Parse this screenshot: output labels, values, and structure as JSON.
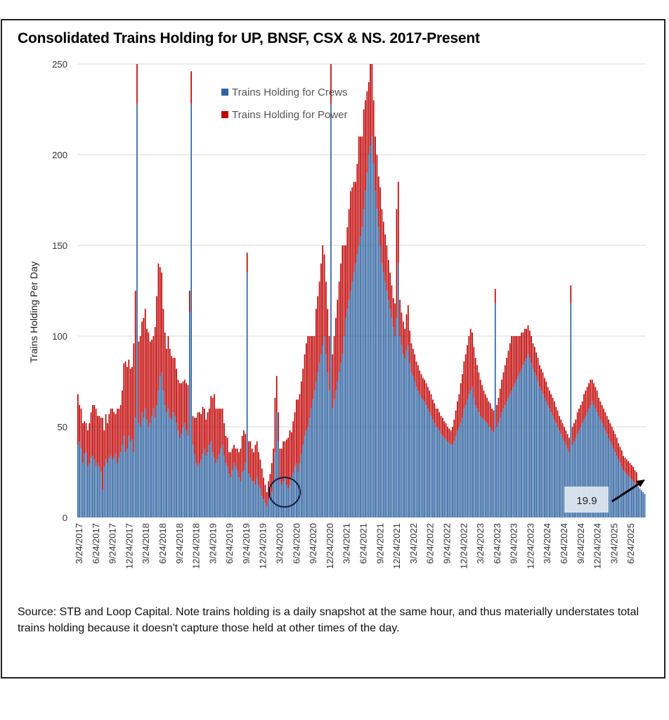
{
  "title": "Consolidated Trains Holding for UP, BNSF, CSX & NS. 2017-Present",
  "footer": "Source: STB and Loop Capital. Note trains holding is a daily snapshot at the same hour, and thus materially understates total trains holding because it doesn't capture those held at other times of the day.",
  "colors": {
    "crews": "#2E62A0",
    "power": "#C00000",
    "grid": "#D9D9D9"
  },
  "chart_data": {
    "type": "bar",
    "stacked": true,
    "title": "Consolidated Trains Holding for UP, BNSF, CSX & NS. 2017-Present",
    "xlabel": "",
    "ylabel": "Trains Holding Per Day",
    "ylim": [
      0,
      250
    ],
    "yticks": [
      0,
      50,
      100,
      150,
      200,
      250
    ],
    "grid": true,
    "legend_position": "top-center",
    "legend": [
      "Trains Holding for Crews",
      "Trains Holding for Power"
    ],
    "x_start": "3/24/2017",
    "x_frequency": "weekly",
    "xtick_every_n_weeks": 13,
    "xtick_labels": [
      "3/24/2017",
      "6/24/2017",
      "9/24/2017",
      "12/24/2017",
      "3/24/2018",
      "6/24/2018",
      "9/24/2018",
      "12/24/2018",
      "3/24/2019",
      "6/24/2019",
      "9/24/2019",
      "12/24/2019",
      "3/24/2020",
      "6/24/2020",
      "9/24/2020",
      "12/24/2020",
      "3/24/2021",
      "6/24/2021",
      "9/24/2021",
      "12/24/2021",
      "3/24/2022",
      "6/24/2022",
      "9/24/2022",
      "12/24/2022",
      "3/24/2023",
      "6/24/2023",
      "9/24/2023",
      "12/24/2023",
      "3/24/2024",
      "6/24/2024",
      "9/24/2024",
      "12/24/2024",
      "3/24/2025",
      "6/24/2025"
    ],
    "series": [
      {
        "name": "Trains Holding for Crews",
        "values": [
          40,
          42,
          38,
          30,
          35,
          36,
          28,
          30,
          33,
          34,
          32,
          28,
          30,
          28,
          25,
          15,
          28,
          32,
          30,
          33,
          34,
          32,
          33,
          35,
          30,
          33,
          36,
          40,
          45,
          36,
          38,
          45,
          42,
          43,
          36,
          55,
          228,
          52,
          50,
          58,
          55,
          60,
          54,
          50,
          52,
          56,
          60,
          55,
          62,
          70,
          78,
          80,
          70,
          62,
          58,
          60,
          55,
          54,
          58,
          56,
          52,
          48,
          44,
          46,
          50,
          52,
          48,
          45,
          113,
          228,
          40,
          35,
          30,
          28,
          30,
          32,
          35,
          38,
          34,
          36,
          40,
          42,
          36,
          33,
          30,
          32,
          35,
          38,
          40,
          34,
          30,
          28,
          24,
          22,
          26,
          30,
          28,
          26,
          22,
          20,
          25,
          26,
          30,
          135,
          24,
          22,
          20,
          20,
          18,
          22,
          18,
          16,
          12,
          10,
          8,
          6,
          10,
          12,
          14,
          20,
          36,
          58,
          42,
          20,
          18,
          20,
          22,
          18,
          16,
          18,
          22,
          25,
          28,
          30,
          25,
          30,
          35,
          40,
          45,
          48,
          50,
          55,
          60,
          65,
          70,
          75,
          80,
          85,
          90,
          95,
          100,
          90,
          80,
          70,
          228,
          60,
          65,
          70,
          75,
          80,
          85,
          90,
          100,
          110,
          115,
          120,
          125,
          130,
          135,
          140,
          145,
          150,
          155,
          160,
          170,
          180,
          190,
          200,
          205,
          210,
          195,
          180,
          170,
          160,
          150,
          140,
          135,
          130,
          125,
          120,
          115,
          110,
          105,
          100,
          110,
          140,
          100,
          95,
          90,
          88,
          92,
          95,
          85,
          80,
          78,
          75,
          72,
          70,
          68,
          66,
          65,
          64,
          62,
          60,
          58,
          56,
          54,
          52,
          50,
          50,
          48,
          46,
          45,
          44,
          43,
          42,
          41,
          40,
          40,
          42,
          45,
          48,
          50,
          52,
          55,
          60,
          62,
          65,
          68,
          70,
          72,
          66,
          62,
          60,
          58,
          56,
          55,
          54,
          53,
          52,
          50,
          50,
          48,
          47,
          118,
          50,
          52,
          55,
          58,
          60,
          62,
          64,
          66,
          68,
          70,
          72,
          74,
          76,
          78,
          80,
          82,
          84,
          86,
          88,
          90,
          88,
          85,
          82,
          80,
          78,
          75,
          72,
          70,
          68,
          66,
          64,
          62,
          60,
          58,
          56,
          54,
          52,
          50,
          48,
          46,
          44,
          42,
          40,
          38,
          36,
          118,
          40,
          42,
          44,
          46,
          48,
          50,
          52,
          54,
          56,
          58,
          60,
          62,
          64,
          62,
          60,
          58,
          56,
          54,
          52,
          50,
          48,
          46,
          44,
          42,
          40,
          38,
          36,
          34,
          32,
          30,
          28,
          26,
          25,
          24,
          23,
          22,
          21,
          20,
          19,
          18,
          17,
          16,
          15,
          14,
          13
        ]
      },
      {
        "name": "Trains Holding for Power",
        "values": [
          28,
          20,
          22,
          22,
          18,
          16,
          20,
          22,
          25,
          28,
          30,
          32,
          26,
          28,
          30,
          40,
          20,
          25,
          22,
          24,
          26,
          28,
          25,
          22,
          30,
          27,
          26,
          30,
          40,
          50,
          45,
          42,
          40,
          40,
          60,
          70,
          22,
          45,
          50,
          50,
          55,
          55,
          50,
          52,
          45,
          42,
          40,
          50,
          60,
          70,
          60,
          55,
          45,
          40,
          35,
          40,
          38,
          35,
          30,
          32,
          30,
          28,
          30,
          28,
          25,
          24,
          26,
          28,
          12,
          18,
          16,
          20,
          25,
          30,
          28,
          25,
          26,
          22,
          20,
          22,
          20,
          25,
          30,
          35,
          30,
          28,
          25,
          22,
          20,
          18,
          15,
          16,
          12,
          14,
          12,
          10,
          10,
          12,
          14,
          18,
          20,
          22,
          16,
          11,
          18,
          20,
          18,
          16,
          22,
          20,
          18,
          16,
          15,
          12,
          10,
          8,
          10,
          12,
          16,
          18,
          30,
          20,
          16,
          18,
          20,
          22,
          20,
          25,
          28,
          30,
          25,
          28,
          30,
          35,
          40,
          38,
          40,
          42,
          45,
          48,
          50,
          45,
          40,
          35,
          30,
          40,
          42,
          45,
          50,
          55,
          45,
          40,
          35,
          30,
          22,
          30,
          35,
          40,
          45,
          50,
          55,
          60,
          50,
          40,
          45,
          50,
          55,
          52,
          50,
          45,
          50,
          60,
          55,
          50,
          55,
          50,
          45,
          40,
          45,
          40,
          35,
          30,
          30,
          28,
          32,
          30,
          28,
          26,
          25,
          22,
          20,
          18,
          16,
          18,
          60,
          45,
          20,
          18,
          18,
          16,
          20,
          22,
          18,
          16,
          15,
          15,
          14,
          14,
          13,
          13,
          12,
          12,
          12,
          12,
          12,
          12,
          11,
          11,
          10,
          10,
          10,
          10,
          10,
          9,
          9,
          8,
          8,
          8,
          10,
          12,
          14,
          16,
          18,
          22,
          24,
          26,
          28,
          30,
          32,
          34,
          30,
          28,
          26,
          24,
          22,
          20,
          18,
          16,
          15,
          14,
          14,
          13,
          12,
          12,
          8,
          12,
          14,
          16,
          18,
          20,
          22,
          24,
          26,
          28,
          30,
          28,
          26,
          24,
          22,
          20,
          20,
          18,
          18,
          16,
          16,
          15,
          15,
          14,
          14,
          13,
          13,
          12,
          12,
          12,
          11,
          11,
          10,
          10,
          10,
          10,
          10,
          9,
          9,
          8,
          8,
          8,
          8,
          8,
          8,
          8,
          10,
          10,
          10,
          10,
          12,
          12,
          12,
          12,
          14,
          14,
          14,
          14,
          14,
          12,
          12,
          12,
          12,
          10,
          10,
          10,
          10,
          10,
          10,
          10,
          10,
          10,
          10,
          10,
          10,
          9,
          9,
          9,
          8,
          8,
          8,
          8,
          8,
          8,
          8,
          7,
          7
        ]
      }
    ],
    "annotations": [
      {
        "type": "circle",
        "label": "",
        "x": "3/24/2020",
        "y": 12
      },
      {
        "type": "arrow-label",
        "label": "19.9",
        "points_to": "latest week",
        "y": 19.9
      }
    ]
  }
}
